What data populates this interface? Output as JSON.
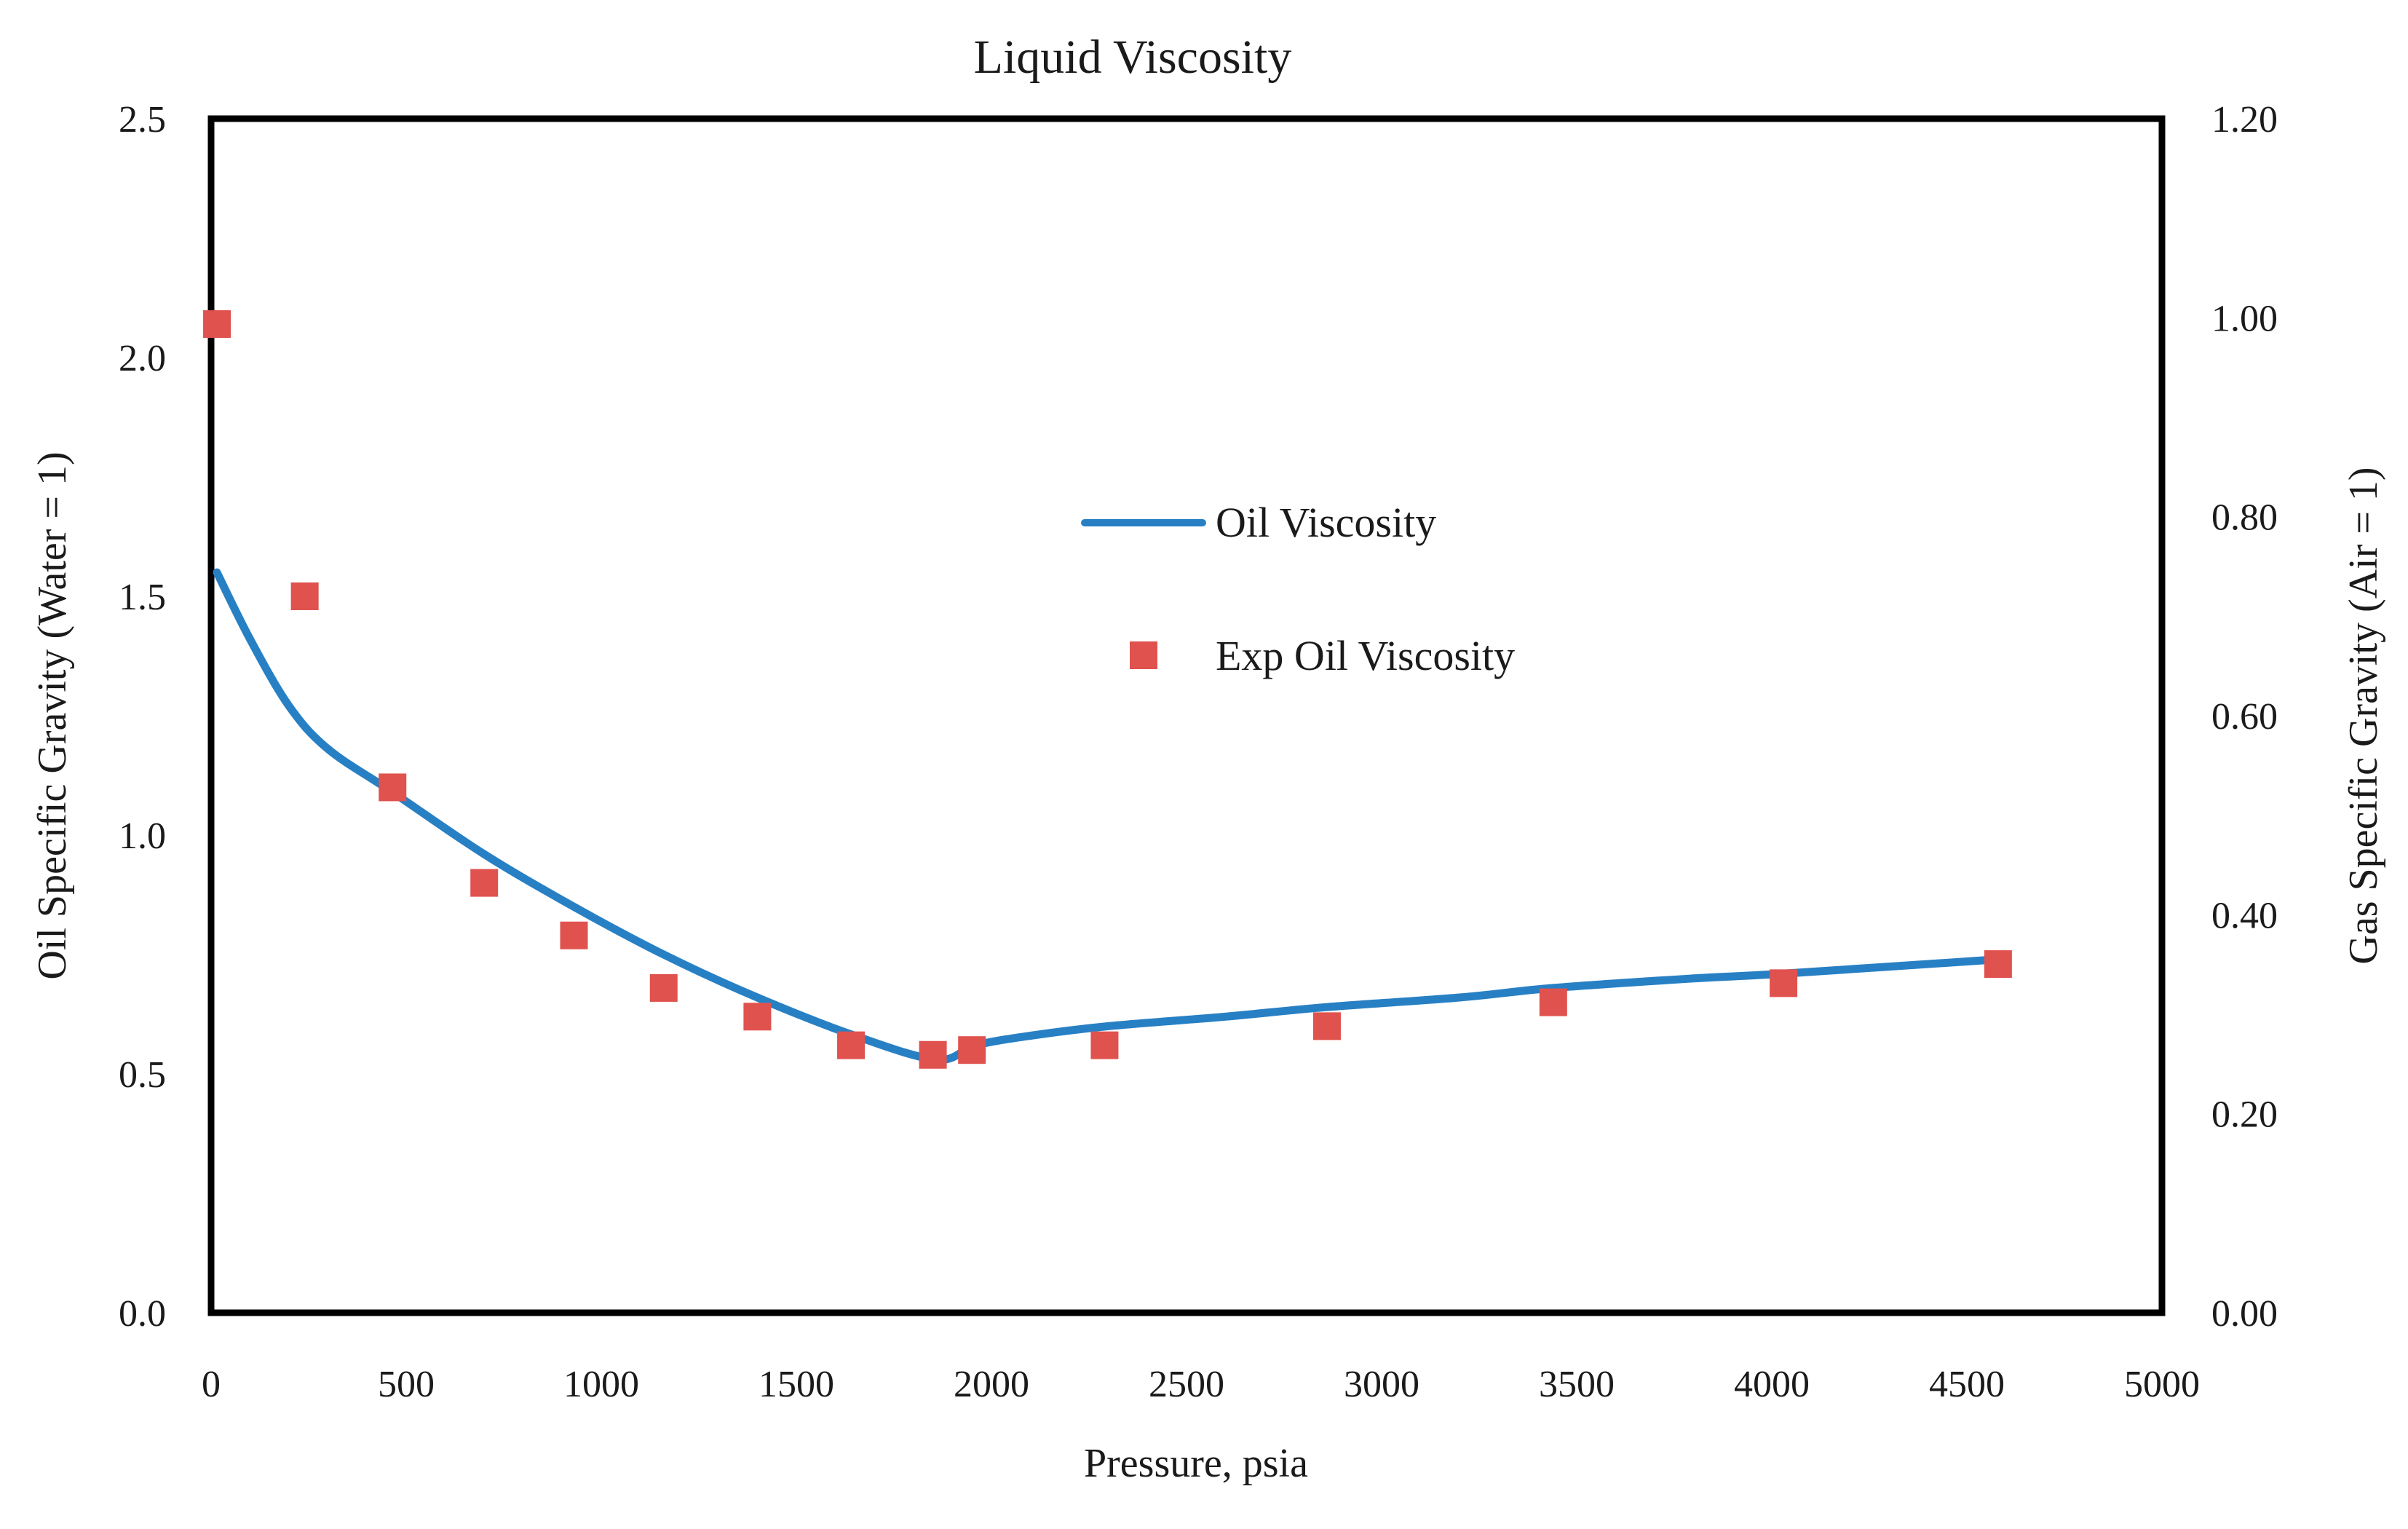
{
  "chart_data": {
    "type": "line",
    "title": "Liquid Viscosity",
    "xlabel": "Pressure, psia",
    "ylabel": "Oil Specific Gravity (Water = 1)",
    "y2label": "Gas Specific Gravity (Air = 1)",
    "xlim": [
      0,
      5000
    ],
    "ylim": [
      0,
      2.5
    ],
    "y2lim": [
      0,
      1.2
    ],
    "xticks": [
      "0",
      "500",
      "1000",
      "1500",
      "2000",
      "2500",
      "3000",
      "3500",
      "4000",
      "4500",
      "5000"
    ],
    "yticks": [
      "0.0",
      "0.5",
      "1.0",
      "1.5",
      "2.0",
      "2.5"
    ],
    "y2ticks": [
      "0.00",
      "0.20",
      "0.40",
      "0.60",
      "0.80",
      "1.00",
      "1.20"
    ],
    "grid": false,
    "legend_position": "center",
    "series": [
      {
        "name": "Oil Viscosity",
        "kind": "line",
        "color": "#2880c4",
        "x": [
          15,
          100,
          200,
          300,
          465,
          700,
          930,
          1160,
          1400,
          1650,
          1860,
          1960,
          2100,
          2300,
          2600,
          2860,
          3200,
          3440,
          3800,
          4030,
          4580
        ],
        "y": [
          1.55,
          1.41,
          1.27,
          1.18,
          1.09,
          0.96,
          0.85,
          0.75,
          0.66,
          0.58,
          0.53,
          0.56,
          0.58,
          0.6,
          0.62,
          0.64,
          0.66,
          0.68,
          0.7,
          0.71,
          0.74
        ]
      },
      {
        "name": "Exp Oil Viscosity",
        "kind": "scatter",
        "color": "#e0524e",
        "x": [
          15,
          240,
          465,
          700,
          930,
          1160,
          1400,
          1640,
          1850,
          1950,
          2290,
          2860,
          3440,
          4030,
          4580
        ],
        "y": [
          2.07,
          1.5,
          1.1,
          0.9,
          0.79,
          0.68,
          0.62,
          0.56,
          0.54,
          0.55,
          0.56,
          0.6,
          0.65,
          0.69,
          0.73
        ]
      }
    ]
  }
}
